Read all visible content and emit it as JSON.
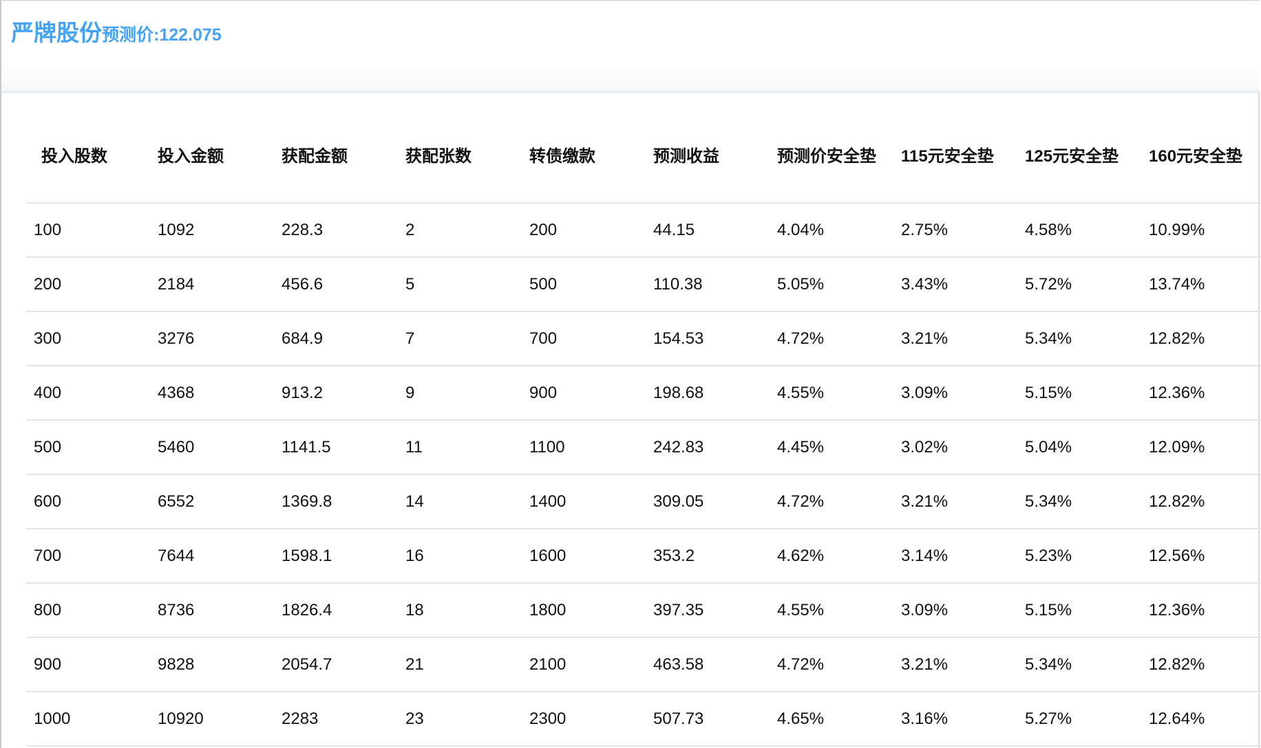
{
  "header": {
    "company": "严牌股份",
    "price_label": "预测价:122.075",
    "accent_color": "#45a3f5"
  },
  "table": {
    "columns": [
      "投入股数",
      "投入金额",
      "获配金额",
      "获配张数",
      "转债缴款",
      "预测收益",
      "预测价安全垫",
      "115元安全垫",
      "125元安全垫",
      "160元安全垫"
    ],
    "rows": [
      [
        "100",
        "1092",
        "228.3",
        "2",
        "200",
        "44.15",
        "4.04%",
        "2.75%",
        "4.58%",
        "10.99%"
      ],
      [
        "200",
        "2184",
        "456.6",
        "5",
        "500",
        "110.38",
        "5.05%",
        "3.43%",
        "5.72%",
        "13.74%"
      ],
      [
        "300",
        "3276",
        "684.9",
        "7",
        "700",
        "154.53",
        "4.72%",
        "3.21%",
        "5.34%",
        "12.82%"
      ],
      [
        "400",
        "4368",
        "913.2",
        "9",
        "900",
        "198.68",
        "4.55%",
        "3.09%",
        "5.15%",
        "12.36%"
      ],
      [
        "500",
        "5460",
        "1141.5",
        "11",
        "1100",
        "242.83",
        "4.45%",
        "3.02%",
        "5.04%",
        "12.09%"
      ],
      [
        "600",
        "6552",
        "1369.8",
        "14",
        "1400",
        "309.05",
        "4.72%",
        "3.21%",
        "5.34%",
        "12.82%"
      ],
      [
        "700",
        "7644",
        "1598.1",
        "16",
        "1600",
        "353.2",
        "4.62%",
        "3.14%",
        "5.23%",
        "12.56%"
      ],
      [
        "800",
        "8736",
        "1826.4",
        "18",
        "1800",
        "397.35",
        "4.55%",
        "3.09%",
        "5.15%",
        "12.36%"
      ],
      [
        "900",
        "9828",
        "2054.7",
        "21",
        "2100",
        "463.58",
        "4.72%",
        "3.21%",
        "5.34%",
        "12.82%"
      ],
      [
        "1000",
        "10920",
        "2283",
        "23",
        "2300",
        "507.73",
        "4.65%",
        "3.16%",
        "5.27%",
        "12.64%"
      ]
    ]
  }
}
